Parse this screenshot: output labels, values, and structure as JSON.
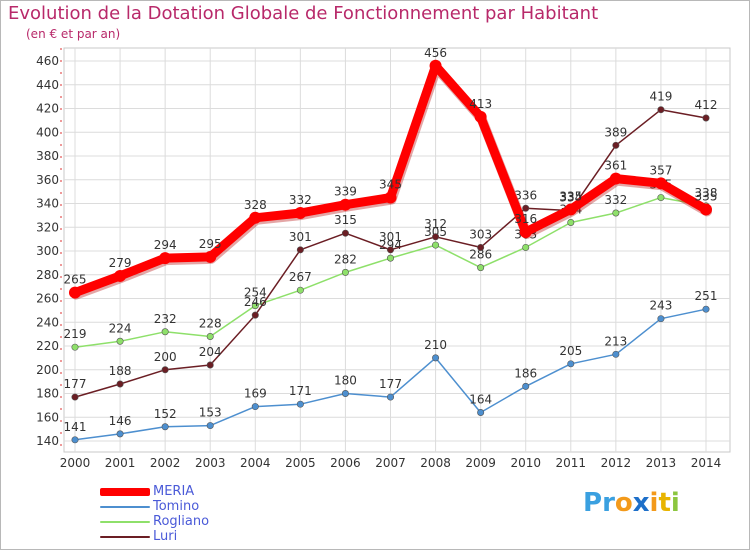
{
  "chart_data": {
    "type": "line",
    "title": "Evolution de la Dotation Globale de Fonctionnement par Habitant",
    "subtitle": "(en € et par an)",
    "xlabel": "",
    "ylabel": "",
    "categories": [
      "2000",
      "2001",
      "2002",
      "2003",
      "2004",
      "2005",
      "2006",
      "2007",
      "2008",
      "2009",
      "2010",
      "2011",
      "2012",
      "2013",
      "2014"
    ],
    "ylim": [
      140,
      460
    ],
    "yticks": [
      140,
      160,
      180,
      200,
      220,
      240,
      260,
      280,
      300,
      320,
      340,
      360,
      380,
      400,
      420,
      440,
      460
    ],
    "grid": true,
    "legend_position": "bottom-left",
    "series": [
      {
        "name": "MERIA",
        "color": "#ff0000",
        "values": [
          265,
          279,
          294,
          295,
          328,
          332,
          339,
          345,
          456,
          413,
          316,
          335,
          361,
          357,
          335
        ]
      },
      {
        "name": "Tomino",
        "color": "#4d8fcf",
        "values": [
          141,
          146,
          152,
          153,
          169,
          171,
          180,
          177,
          210,
          164,
          186,
          205,
          213,
          243,
          251
        ]
      },
      {
        "name": "Rogliano",
        "color": "#8ee06a",
        "values": [
          219,
          224,
          232,
          228,
          254,
          267,
          282,
          294,
          305,
          286,
          303,
          324,
          332,
          345,
          338
        ]
      },
      {
        "name": "Luri",
        "color": "#6b1e24",
        "values": [
          177,
          188,
          200,
          204,
          246,
          301,
          315,
          301,
          312,
          303,
          336,
          334,
          389,
          419,
          412
        ]
      }
    ]
  },
  "logo": {
    "letters": [
      {
        "ch": "P",
        "color": "#3aa0e0"
      },
      {
        "ch": "r",
        "color": "#3aa0e0"
      },
      {
        "ch": "o",
        "color": "#f39a1b"
      },
      {
        "ch": "x",
        "color": "#1d6fc9"
      },
      {
        "ch": "i",
        "color": "#f39a1b"
      },
      {
        "ch": "t",
        "color": "#e8b400"
      },
      {
        "ch": "i",
        "color": "#8cc63f"
      }
    ]
  }
}
